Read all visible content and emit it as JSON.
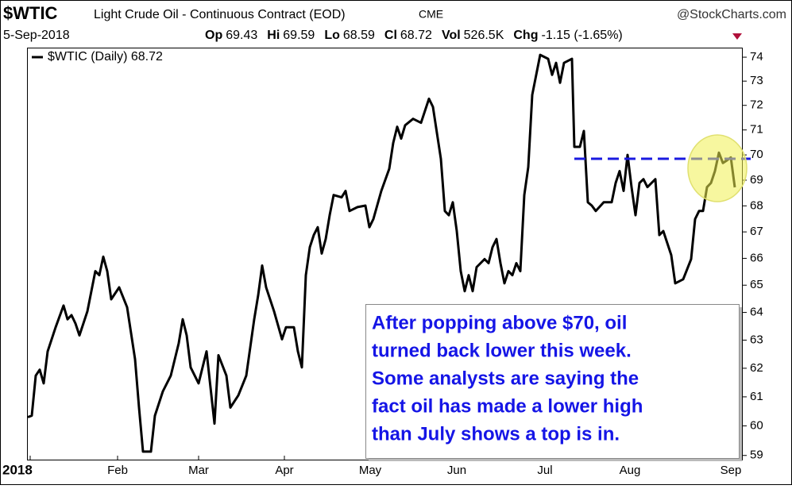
{
  "chart_data": {
    "type": "line",
    "symbol": "$WTIC",
    "title": "Light Crude Oil - Continuous Contract (EOD)",
    "exchange": "CME",
    "source": "@StockCharts.com",
    "date": "5-Sep-2018",
    "quote": [
      {
        "label": "Op",
        "value": 69.43
      },
      {
        "label": "Hi",
        "value": 69.59
      },
      {
        "label": "Lo",
        "value": 68.59
      },
      {
        "label": "Cl",
        "value": 68.72
      },
      {
        "label": "Vol",
        "value": "526.5K"
      },
      {
        "label": "Chg",
        "value": "-1.15 (-1.65%)"
      }
    ],
    "annotation": [
      "After popping above $70, oil",
      "turned back lower  this week.",
      "Some analysts are saying the",
      "fact oil has made a lower high",
      "than July shows a top is in."
    ],
    "log_scale": true,
    "xlim": [
      0,
      180
    ],
    "xticks": [
      {
        "value": 0.6,
        "label": "2018"
      },
      {
        "value": 22.6,
        "label": "Feb"
      },
      {
        "value": 43,
        "label": "Mar"
      },
      {
        "value": 64.6,
        "label": "Apr"
      },
      {
        "value": 86.2,
        "label": "May"
      },
      {
        "value": 108,
        "label": "Jun"
      },
      {
        "value": 130.2,
        "label": "Jul"
      },
      {
        "value": 151.6,
        "label": "Aug"
      },
      {
        "value": 177,
        "label": "Sep"
      }
    ],
    "ylim": [
      58.86,
      74.37
    ],
    "yticks": [
      59,
      60,
      61,
      62,
      63,
      64,
      65,
      66,
      67,
      68,
      69,
      70,
      71,
      72,
      73,
      74
    ],
    "x": [
      0,
      1,
      2,
      3,
      4,
      5,
      7,
      9,
      10,
      11,
      12,
      13,
      15,
      17,
      18,
      19,
      20,
      21,
      23,
      25,
      27,
      28,
      29,
      31,
      32,
      34,
      36,
      38,
      39,
      40,
      41,
      43,
      45,
      47,
      48,
      50,
      51,
      53,
      55,
      57,
      58,
      59,
      60,
      62,
      64,
      65,
      67,
      68,
      69,
      70,
      71,
      72,
      73,
      74,
      75,
      76,
      77,
      79,
      80,
      81,
      83,
      85,
      86,
      87,
      89,
      91,
      92,
      93,
      94,
      95,
      97,
      99,
      101,
      102,
      104,
      105,
      106,
      107,
      108,
      109,
      110,
      111,
      112,
      113,
      115,
      116,
      117,
      118,
      119,
      120,
      121,
      122,
      123,
      124,
      125,
      126,
      127,
      129,
      131,
      132,
      133,
      134,
      135,
      137,
      137.6,
      139,
      140,
      141,
      142,
      143,
      145,
      147,
      148,
      149,
      150,
      151,
      152,
      153,
      154,
      155,
      156,
      158,
      159,
      160,
      162,
      163,
      165,
      167,
      168,
      169,
      170,
      171,
      172,
      173,
      174,
      175,
      176,
      177,
      178
    ],
    "series": [
      {
        "name": "$WTIC (Daily) 68.72",
        "color": "#000000",
        "values": [
          60.3,
          60.35,
          61.74,
          61.95,
          61.47,
          62.6,
          63.46,
          64.25,
          63.75,
          63.9,
          63.6,
          63.17,
          64.04,
          65.52,
          65.37,
          66.06,
          65.52,
          64.48,
          64.92,
          64.19,
          62.32,
          60.63,
          59.13,
          59.13,
          60.35,
          61.19,
          61.74,
          62.89,
          63.75,
          63.17,
          62.03,
          61.47,
          62.6,
          60.08,
          62.46,
          61.74,
          60.63,
          61.05,
          61.74,
          63.75,
          64.63,
          65.73,
          64.92,
          64.04,
          63.03,
          63.46,
          63.46,
          62.6,
          62.03,
          65.37,
          66.42,
          66.88,
          67.18,
          66.18,
          66.73,
          67.64,
          68.42,
          68.33,
          68.58,
          67.8,
          67.95,
          68.01,
          67.18,
          67.49,
          68.58,
          69.45,
          70.48,
          71.13,
          70.65,
          71.19,
          71.45,
          71.29,
          72.27,
          71.94,
          69.84,
          67.8,
          67.64,
          68.14,
          67.03,
          65.52,
          64.78,
          65.37,
          64.78,
          65.67,
          65.97,
          65.82,
          66.42,
          66.73,
          65.82,
          65.07,
          65.52,
          65.37,
          65.82,
          65.52,
          68.42,
          69.52,
          72.43,
          74.1,
          73.93,
          73.26,
          73.76,
          72.93,
          73.76,
          73.93,
          70.32,
          70.32,
          70.96,
          68.14,
          68.01,
          67.8,
          68.14,
          68.14,
          68.89,
          69.36,
          68.58,
          70.0,
          68.73,
          67.64,
          68.89,
          69.04,
          68.73,
          69.04,
          66.88,
          67.03,
          66.12,
          65.07,
          65.22,
          65.97,
          67.49,
          67.8,
          67.8,
          68.73,
          68.89,
          69.36,
          70.09,
          69.68,
          69.78,
          69.9,
          68.72
        ]
      }
    ]
  }
}
